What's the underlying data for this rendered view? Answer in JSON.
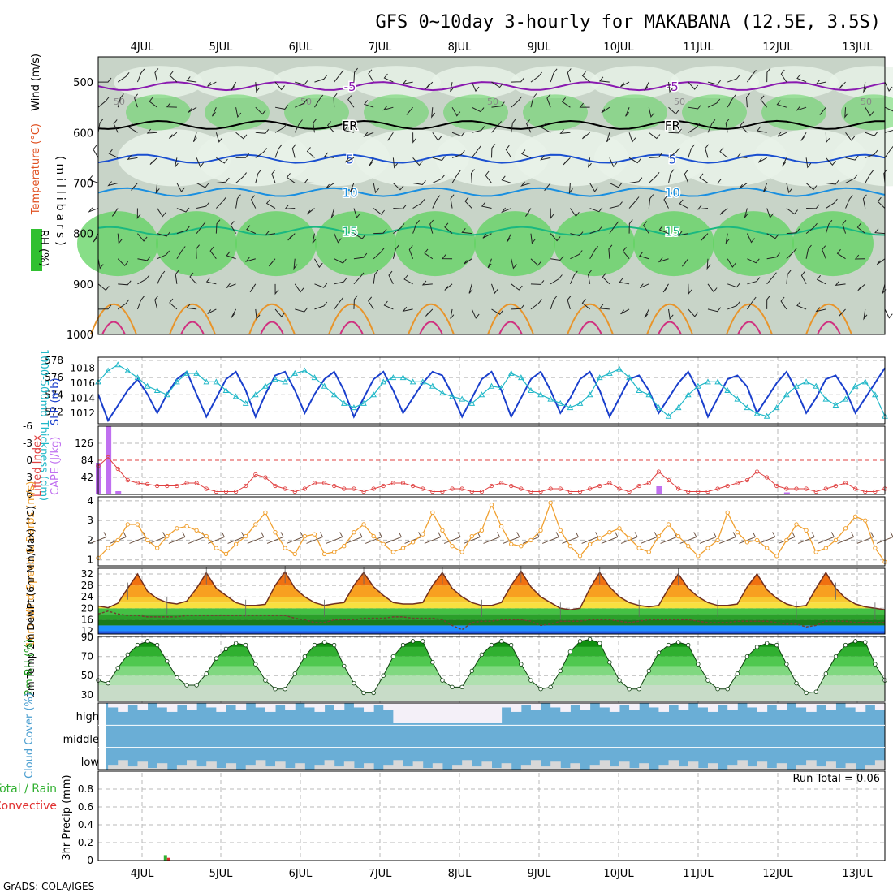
{
  "page": {
    "title": "GFS 0~10day 3-hourly for MAKABANA (12.5E, 3.5S)",
    "footer": "GrADS: COLA/IGES"
  },
  "colors": {
    "grid": "#b8b8b8",
    "rh_green": "#5fd35f",
    "rh_light": "#e8f2e8",
    "rh_mid": "#c8d4c8",
    "temp_orange": "#e8942a",
    "slp_blue": "#1a3fcc",
    "thickness_cyan": "#22b8c8",
    "cape_purple": "#c070f0",
    "li_red": "#e04040",
    "wind_orange": "#f0a030",
    "cloud_blue": "#6aaed6",
    "cloud_white": "#f4f0f8",
    "precip_green": "#30b030",
    "precip_red": "#e03030"
  },
  "chart_data": [
    {
      "id": "upper_air",
      "type": "heatmap",
      "title": "GFS 0~10day 3-hourly for MAKABANA (12.5E, 3.5S)",
      "ylabel": "(millibars)",
      "legend_labels": [
        "Wind (m/s)",
        "Temperature (°C)",
        "RH (%)"
      ],
      "x_date_labels": [
        "4JUL",
        "5JUL",
        "6JUL",
        "7JUL",
        "8JUL",
        "9JUL",
        "10JUL",
        "11JUL",
        "12JUL",
        "13JUL"
      ],
      "y_ticks": [
        500,
        600,
        700,
        800,
        900,
        1000
      ],
      "ylim": [
        1000,
        450
      ],
      "contours": [
        {
          "label": "-5",
          "color": "#8a1ab0",
          "level_mb": 508
        },
        {
          "label": "FR",
          "color": "#000000",
          "level_mb": 585
        },
        {
          "label": "5",
          "color": "#1a4fd0",
          "level_mb": 652
        },
        {
          "label": "10",
          "color": "#1a8fe0",
          "level_mb": 718
        },
        {
          "label": "15",
          "color": "#1ab880",
          "level_mb": 795
        }
      ],
      "rh_labels": [
        "50",
        "50",
        "50",
        "50",
        "50"
      ]
    },
    {
      "id": "slp_thickness",
      "type": "line",
      "y1label": "1000-500mb Thickness (dm)",
      "y2label": "SLP (mb)",
      "y1_ticks": [
        "578",
        "576",
        "574",
        "572"
      ],
      "y2_ticks": [
        "1018",
        "1016",
        "1014",
        "1012"
      ],
      "y1lim": [
        571,
        578
      ],
      "y2lim": [
        1011,
        1019
      ],
      "series": [
        {
          "name": "SLP (mb)",
          "axis": "right",
          "values": [
            1014.5,
            1011.0,
            1013.0,
            1015.0,
            1016.5,
            1014.5,
            1012.0,
            1014.5,
            1016.5,
            1017.5,
            1014.5,
            1011.5,
            1014.0,
            1016.5,
            1017.5,
            1015.0,
            1011.5,
            1014.5,
            1017.0,
            1017.5,
            1015.0,
            1012.0,
            1014.5,
            1016.5,
            1017.5,
            1015.0,
            1011.5,
            1014.0,
            1016.5,
            1017.5,
            1015.0,
            1012.0,
            1014.0,
            1016.0,
            1017.5,
            1017.0,
            1014.5,
            1011.5,
            1014.0,
            1016.5,
            1017.5,
            1015.0,
            1011.5,
            1014.0,
            1016.5,
            1017.5,
            1015.0,
            1012.0,
            1014.0,
            1016.5,
            1017.5,
            1015.0,
            1011.5,
            1014.0,
            1016.5,
            1017.0,
            1015.0,
            1012.0,
            1014.0,
            1016.0,
            1017.5,
            1015.0,
            1011.5,
            1014.0,
            1016.5,
            1017.0,
            1015.5,
            1012.0,
            1014.0,
            1016.0,
            1017.5,
            1015.0,
            1012.0,
            1014.0,
            1016.5,
            1017.0,
            1015.0,
            1012.0,
            1014.0,
            1016.0,
            1018.0
          ]
        },
        {
          "name": "1000-500mb Thickness (dm)",
          "axis": "left",
          "values": [
            575.5,
            576.8,
            577.5,
            576.8,
            576.0,
            575.0,
            574.5,
            574.0,
            575.5,
            576.5,
            576.5,
            575.5,
            575.5,
            574.5,
            573.8,
            573.0,
            574.0,
            575.0,
            575.8,
            575.5,
            576.5,
            576.8,
            576.0,
            575.0,
            574.0,
            573.0,
            572.5,
            573.0,
            574.0,
            575.5,
            576.0,
            576.0,
            575.5,
            575.5,
            575.0,
            574.2,
            573.8,
            573.5,
            573.0,
            574.0,
            575.0,
            574.8,
            576.5,
            576.0,
            574.5,
            574.0,
            573.5,
            573.0,
            572.5,
            573.0,
            574.0,
            576.0,
            576.5,
            577.0,
            576.0,
            574.5,
            574.0,
            572.5,
            571.5,
            572.5,
            574.0,
            575.0,
            575.5,
            575.5,
            574.5,
            573.5,
            572.5,
            571.8,
            571.5,
            572.5,
            574.0,
            575.0,
            575.5,
            575.0,
            573.5,
            572.8,
            573.5,
            575.0,
            575.5,
            574.0,
            571.5
          ]
        }
      ]
    },
    {
      "id": "cape_li",
      "type": "bar",
      "y1label": "Lifted Index",
      "y2label": "CAPE (J/kg)",
      "y1_ticks": [
        "-6",
        "-3",
        "0",
        "3",
        "6"
      ],
      "y2_ticks": [
        "126",
        "84",
        "42"
      ],
      "cape_bars": [
        {
          "index": 0,
          "value": 78
        },
        {
          "index": 1,
          "value": 168
        },
        {
          "index": 2,
          "value": 8
        },
        {
          "index": 57,
          "value": 20
        },
        {
          "index": 70,
          "value": 5
        }
      ],
      "lifted_index": [
        1.0,
        -0.5,
        1.5,
        3.5,
        4.0,
        4.2,
        4.5,
        4.5,
        4.5,
        4.0,
        4.0,
        5.0,
        5.5,
        5.5,
        5.5,
        4.5,
        2.5,
        3.0,
        4.5,
        5.0,
        5.5,
        5.0,
        4.0,
        4.0,
        4.5,
        5.0,
        5.0,
        5.5,
        5.0,
        4.5,
        4.0,
        4.0,
        4.5,
        5.0,
        5.5,
        5.5,
        5.0,
        5.0,
        5.5,
        5.5,
        4.5,
        4.0,
        4.5,
        5.0,
        5.5,
        5.5,
        5.0,
        5.0,
        5.5,
        5.5,
        5.0,
        4.5,
        4.0,
        5.0,
        5.5,
        4.5,
        4.0,
        2.0,
        3.5,
        5.0,
        5.5,
        5.5,
        5.5,
        5.0,
        4.5,
        4.0,
        3.5,
        2.0,
        3.0,
        4.5,
        5.0,
        5.0,
        5.0,
        5.5,
        5.0,
        4.5,
        4.0,
        5.0,
        5.5,
        5.5,
        5.0
      ]
    },
    {
      "id": "wind10m",
      "type": "line",
      "ylabel": "10m Wind Speed & Barbs (m/s)",
      "y_ticks": [
        "4",
        "3",
        "2",
        "1"
      ],
      "ylim": [
        0.7,
        4.2
      ],
      "series": [
        {
          "name": "10m Wind Speed",
          "values": [
            1.1,
            1.6,
            2.0,
            2.8,
            2.8,
            2.0,
            1.6,
            2.2,
            2.6,
            2.7,
            2.5,
            2.2,
            1.6,
            1.3,
            1.8,
            2.2,
            2.8,
            3.4,
            2.4,
            1.6,
            1.3,
            2.2,
            2.3,
            1.3,
            1.4,
            1.7,
            2.4,
            2.8,
            2.2,
            1.8,
            1.4,
            1.6,
            1.9,
            2.3,
            3.4,
            2.5,
            1.7,
            1.4,
            2.2,
            2.5,
            3.8,
            2.7,
            1.8,
            1.7,
            2.0,
            2.5,
            3.9,
            2.5,
            1.7,
            1.2,
            1.8,
            2.1,
            2.4,
            2.6,
            2.1,
            1.6,
            1.4,
            2.2,
            2.8,
            2.2,
            1.7,
            1.2,
            1.6,
            2.0,
            3.4,
            2.4,
            1.9,
            2.0,
            1.6,
            1.2,
            2.0,
            2.8,
            2.5,
            1.4,
            1.6,
            2.0,
            2.6,
            3.2,
            3.0,
            1.6,
            0.9
          ]
        }
      ]
    },
    {
      "id": "temp2m",
      "type": "area",
      "ylabel": "2m Temp 2m DewPt (6hr Min/Max) (°C)",
      "y_ticks": [
        "32",
        "28",
        "24",
        "20",
        "16",
        "12"
      ],
      "ylim": [
        11,
        34
      ],
      "series": [
        {
          "name": "2m Temp",
          "values": [
            20.8,
            20.2,
            21.8,
            27.0,
            32.0,
            26.0,
            23.4,
            22.0,
            21.5,
            22.5,
            27.0,
            32.4,
            27.0,
            24.5,
            22.0,
            21.0,
            21.0,
            21.4,
            28.0,
            32.8,
            27.0,
            24.0,
            22.0,
            21.0,
            21.6,
            22.0,
            28.0,
            32.5,
            27.5,
            24.5,
            22.0,
            21.5,
            21.5,
            22.0,
            28.0,
            32.5,
            27.0,
            24.0,
            22.0,
            21.0,
            21.0,
            22.0,
            28.0,
            33.0,
            27.5,
            24.0,
            22.0,
            20.0,
            19.5,
            20.0,
            27.0,
            32.5,
            27.5,
            24.0,
            22.0,
            21.0,
            20.5,
            21.0,
            27.0,
            32.0,
            27.0,
            24.0,
            22.0,
            21.0,
            21.0,
            21.5,
            27.5,
            32.0,
            26.5,
            23.5,
            21.5,
            20.5,
            21.0,
            27.0,
            32.5,
            27.0,
            23.5,
            21.5,
            20.5,
            20.0,
            19.5
          ]
        },
        {
          "name": "2m DewPt",
          "values": [
            18.0,
            19.0,
            18.0,
            17.5,
            17.5,
            17.0,
            17.0,
            17.0,
            17.0,
            17.5,
            17.5,
            17.5,
            17.5,
            17.5,
            17.5,
            17.5,
            17.5,
            17.5,
            17.5,
            17.5,
            16.5,
            16.0,
            15.0,
            15.0,
            16.0,
            16.0,
            16.0,
            16.5,
            16.5,
            16.5,
            17.0,
            17.0,
            16.5,
            16.5,
            16.5,
            16.0,
            14.0,
            12.5,
            15.0,
            15.5,
            15.5,
            16.0,
            16.0,
            16.0,
            15.5,
            14.0,
            14.5,
            15.5,
            15.5,
            15.5,
            16.0,
            16.0,
            16.0,
            15.5,
            15.0,
            15.5,
            16.0,
            16.0,
            16.0,
            16.0,
            16.0,
            15.5,
            15.0,
            15.0,
            15.0,
            15.5,
            15.5,
            15.5,
            15.5,
            15.0,
            14.5,
            14.5,
            13.5,
            14.0,
            15.5,
            15.5,
            15.5,
            15.0,
            15.0,
            15.0,
            15.0
          ]
        }
      ]
    },
    {
      "id": "rh2m",
      "type": "area",
      "ylabel": "2m RH (%)",
      "y_ticks": [
        "90",
        "70",
        "50",
        "30"
      ],
      "ylim": [
        23,
        91
      ],
      "series": [
        {
          "name": "2m RH",
          "values": [
            45,
            42,
            58,
            72,
            82,
            86,
            82,
            65,
            48,
            40,
            40,
            52,
            68,
            78,
            84,
            82,
            62,
            45,
            36,
            36,
            52,
            70,
            82,
            85,
            82,
            60,
            42,
            32,
            32,
            50,
            70,
            82,
            86,
            86,
            64,
            45,
            38,
            38,
            55,
            72,
            82,
            86,
            82,
            62,
            45,
            36,
            38,
            55,
            75,
            86,
            88,
            84,
            64,
            45,
            36,
            36,
            55,
            74,
            82,
            85,
            82,
            62,
            45,
            36,
            36,
            52,
            70,
            80,
            84,
            82,
            62,
            42,
            32,
            33,
            52,
            70,
            82,
            86,
            85,
            62,
            45
          ]
        }
      ]
    },
    {
      "id": "cloud",
      "type": "bar",
      "ylabel": "Cloud Cover (%)",
      "categories": [
        "high",
        "middle",
        "low"
      ]
    },
    {
      "id": "precip",
      "type": "bar",
      "ylabel": "3hr Precip (mm)",
      "legend_labels": [
        "Total / Rain",
        "Convective"
      ],
      "y_ticks": [
        "0.8",
        "0.6",
        "0.4",
        "0.2",
        "0"
      ],
      "ylim": [
        0,
        1.0
      ],
      "annotation": "Run Total = 0.06",
      "bars": [
        {
          "index": 7,
          "total": 0.06,
          "convective": 0.03
        }
      ]
    }
  ]
}
